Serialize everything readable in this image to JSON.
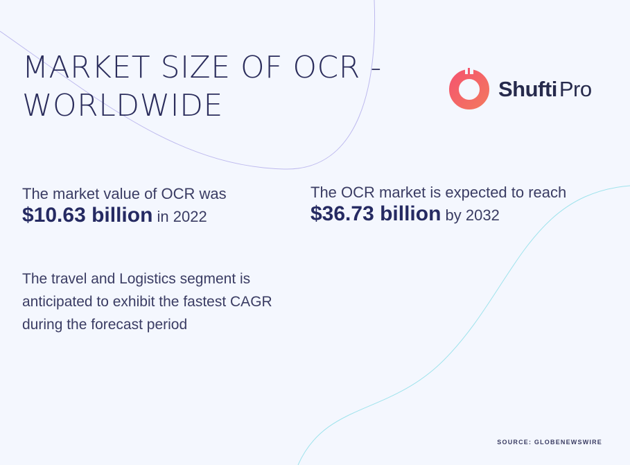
{
  "title": {
    "line1": "MARKET SIZE OF OCR -",
    "line2": "WORLDWIDE"
  },
  "logo": {
    "word1": "Shufti",
    "word2": "Pro",
    "icon": "shufti-pro-ring-icon",
    "colors": [
      "#f4576d",
      "#f37560"
    ]
  },
  "stats": [
    {
      "lead": "The market value of OCR was",
      "value": "$10.63 billion",
      "suffix": "in 2022"
    },
    {
      "lead": "The OCR market is expected to reach",
      "value": "$36.73 billion",
      "suffix": "by 2032"
    }
  ],
  "segment": {
    "lines": [
      "The travel and Logistics segment is",
      "anticipated to exhibit the fastest CAGR",
      "during the forecast period"
    ]
  },
  "source": "SOURCE: GLOBENEWSWIRE",
  "colors": {
    "background": "#f4f7fe",
    "text": "#2b2d5c",
    "accent_curve_purple": "#b9b6ee",
    "accent_curve_cyan": "#8ee0ea"
  }
}
